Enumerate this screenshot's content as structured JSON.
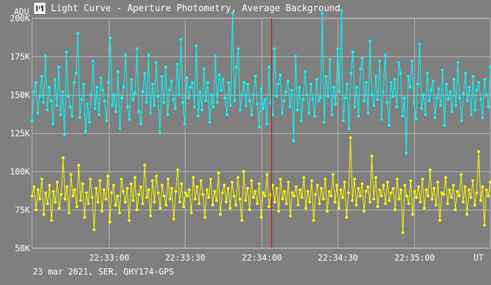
{
  "window": {
    "title": "Light Curve - Aperture Photometry, Average Background",
    "icon": "light-curve-icon"
  },
  "footer": {
    "info": "23 mar 2021, SER, QHY174-GPS"
  },
  "colors": {
    "background": "#7f7f7f",
    "grid": "#b8b8b8",
    "axis_text": "#ffffff",
    "cursor": "#e00000",
    "series_1": "#00ffff",
    "series_2": "#ffff00"
  },
  "chart_data": {
    "type": "line",
    "title": "Light Curve - Aperture Photometry, Average Background",
    "ylabel": "ADU",
    "xlabel": "UT",
    "ylim": [
      50000,
      200000
    ],
    "yticks": [
      {
        "value": 50000,
        "label": "50K"
      },
      {
        "value": 75000,
        "label": "75K"
      },
      {
        "value": 100000,
        "label": "100K"
      },
      {
        "value": 125000,
        "label": "125K"
      },
      {
        "value": 150000,
        "label": "150K"
      },
      {
        "value": 175000,
        "label": "175K"
      },
      {
        "value": 200000,
        "label": "200K"
      }
    ],
    "xlim": [
      "22:32:30",
      "22:35:30"
    ],
    "xticks": [
      "22:33:00",
      "22:33:30",
      "22:34:00",
      "22:34:30",
      "22:35:00"
    ],
    "grid": true,
    "cursor_x": "22:34:04",
    "series": [
      {
        "color": "#00ffff",
        "x_start": "22:32:30",
        "x_end": "22:35:30",
        "values": [
          133000,
          152000,
          158000,
          138000,
          149000,
          162000,
          145000,
          175000,
          140000,
          155000,
          146000,
          131000,
          160000,
          143000,
          168000,
          137000,
          152000,
          124000,
          178000,
          149000,
          142000,
          136000,
          158000,
          164000,
          190000,
          135000,
          147000,
          157000,
          126000,
          144000,
          132000,
          150000,
          172000,
          141000,
          155000,
          137000,
          161000,
          153000,
          146000,
          133000,
          158000,
          187000,
          143000,
          150000,
          139000,
          165000,
          128000,
          148000,
          155000,
          176000,
          142000,
          134000,
          160000,
          147000,
          151000,
          180000,
          139000,
          131000,
          152000,
          164000,
          145000,
          176000,
          138000,
          157000,
          143000,
          171000,
          149000,
          125000,
          162000,
          145000,
          168000,
          137000,
          153000,
          159000,
          147000,
          141000,
          170000,
          150000,
          186000,
          145000,
          131000,
          161000,
          148000,
          155000,
          158000,
          142000,
          182000,
          136000,
          152000,
          140000,
          167000,
          146000,
          158000,
          132000,
          150000,
          142000,
          175000,
          145000,
          163000,
          153000,
          160000,
          148000,
          137000,
          158000,
          143000,
          203000,
          146000,
          168000,
          180000,
          140000,
          150000,
          158000,
          143000,
          157000,
          146000,
          137000,
          150000,
          162000,
          144000,
          129000,
          154000,
          141000,
          147000,
          131000,
          168000,
          145000,
          137000,
          180000,
          149000,
          157000,
          163000,
          138000,
          146000,
          152000,
          159000,
          142000,
          153000,
          120000,
          175000,
          140000,
          155000,
          133000,
          147000,
          165000,
          150000,
          138000,
          157000,
          147000,
          136000,
          160000,
          146000,
          148000,
          203000,
          132000,
          162000,
          149000,
          173000,
          137000,
          155000,
          144000,
          180000,
          152000,
          205000,
          133000,
          148000,
          157000,
          128000,
          164000,
          178000,
          142000,
          155000,
          136000,
          167000,
          174000,
          146000,
          158000,
          138000,
          185000,
          150000,
          143000,
          162000,
          147000,
          172000,
          134000,
          152000,
          176000,
          145000,
          130000,
          158000,
          149000,
          160000,
          142000,
          171000,
          164000,
          136000,
          148000,
          112000,
          162000,
          155000,
          172000,
          145000,
          134000,
          157000,
          183000,
          141000,
          150000,
          137000,
          164000,
          146000,
          153000,
          159000,
          135000,
          148000,
          154000,
          143000,
          166000,
          130000,
          157000,
          147000,
          152000,
          139000,
          160000,
          143000,
          171000,
          148000,
          133000,
          151000,
          164000,
          146000,
          155000,
          137000,
          162000,
          140000,
          153000,
          158000,
          147000,
          135000,
          160000,
          150000,
          142000,
          168000
        ]
      },
      {
        "color": "#ffff00",
        "x_start": "22:32:30",
        "x_end": "22:35:30",
        "values": [
          84000,
          90000,
          75000,
          88000,
          82000,
          95000,
          72000,
          86000,
          79000,
          91000,
          68000,
          87000,
          80000,
          93000,
          76000,
          85000,
          109000,
          82000,
          90000,
          73000,
          98000,
          84000,
          88000,
          77000,
          104000,
          81000,
          92000,
          70000,
          86000,
          79000,
          95000,
          83000,
          62000,
          89000,
          80000,
          94000,
          74000,
          88000,
          82000,
          97000,
          67000,
          86000,
          91000,
          78000,
          84000,
          73000,
          95000,
          87000,
          80000,
          89000,
          68000,
          92000,
          81000,
          96000,
          75000,
          85000,
          90000,
          79000,
          104000,
          83000,
          88000,
          71000,
          94000,
          80000,
          97000,
          86000,
          76000,
          91000,
          84000,
          78000,
          95000,
          82000,
          89000,
          69000,
          87000,
          101000,
          80000,
          92000,
          77000,
          86000,
          84000,
          88000,
          73000,
          96000,
          82000,
          90000,
          79000,
          94000,
          85000,
          70000,
          88000,
          83000,
          95000,
          78000,
          87000,
          81000,
          99000,
          72000,
          86000,
          91000,
          80000,
          89000,
          76000,
          93000,
          84000,
          78000,
          96000,
          82000,
          68000,
          100000,
          81000,
          89000,
          75000,
          94000,
          83000,
          87000,
          79000,
          92000,
          70000,
          86000,
          84000,
          98000,
          77000,
          85000,
          91000,
          80000,
          89000,
          74000,
          95000,
          82000,
          87000,
          79000,
          93000,
          71000,
          86000,
          84000,
          90000,
          78000,
          88000,
          83000,
          96000,
          76000,
          87000,
          80000,
          94000,
          68000,
          85000,
          91000,
          79000,
          89000,
          82000,
          95000,
          74000,
          87000,
          84000,
          98000,
          80000,
          91000,
          76000,
          88000,
          83000,
          93000,
          70000,
          86000,
          122000,
          81000,
          95000,
          78000,
          89000,
          84000,
          92000,
          74000,
          87000,
          90000,
          80000,
          110000,
          82000,
          96000,
          77000,
          88000,
          84000,
          91000,
          79000,
          93000,
          81000,
          86000,
          89000,
          75000,
          95000,
          82000,
          88000,
          60000,
          91000,
          84000,
          79000,
          94000,
          72000,
          87000,
          83000,
          90000,
          80000,
          95000,
          76000,
          88000,
          84000,
          101000,
          82000,
          89000,
          78000,
          93000,
          68000,
          86000,
          85000,
          96000,
          79000,
          88000,
          83000,
          91000,
          75000,
          87000,
          84000,
          98000,
          80000,
          90000,
          72000,
          88000,
          83000,
          94000,
          78000,
          86000,
          113000,
          81000,
          90000,
          65000,
          88000,
          84000,
          93000
        ]
      }
    ]
  }
}
